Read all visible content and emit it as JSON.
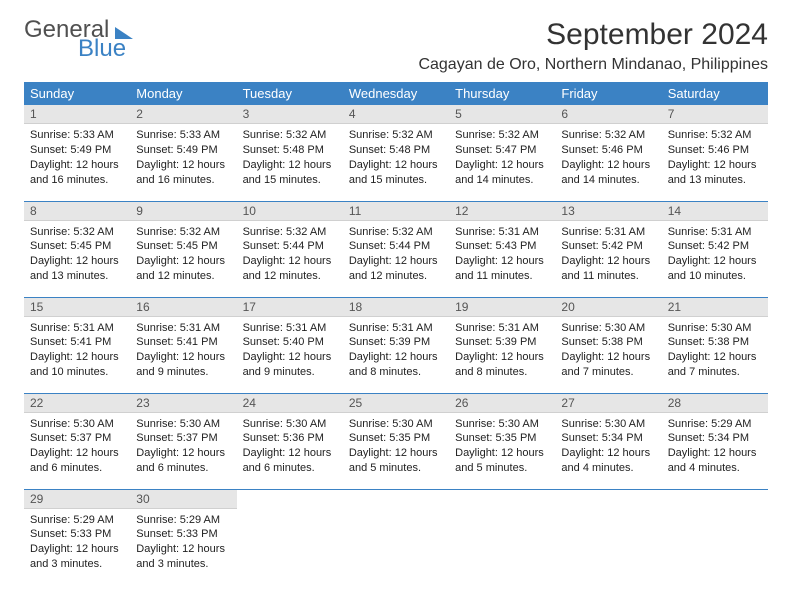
{
  "brand": {
    "text1": "General",
    "text2": "Blue",
    "accent_color": "#3b82c4"
  },
  "title": "September 2024",
  "location": "Cagayan de Oro, Northern Mindanao, Philippines",
  "columns": [
    "Sunday",
    "Monday",
    "Tuesday",
    "Wednesday",
    "Thursday",
    "Friday",
    "Saturday"
  ],
  "style": {
    "header_bg": "#3b82c4",
    "header_fg": "#ffffff",
    "daynum_bg": "#e6e6e6",
    "row_divider": "#3b82c4",
    "body_font_size": 11
  },
  "weeks": [
    [
      {
        "n": "1",
        "sr": "5:33 AM",
        "ss": "5:49 PM",
        "dl": "12 hours and 16 minutes."
      },
      {
        "n": "2",
        "sr": "5:33 AM",
        "ss": "5:49 PM",
        "dl": "12 hours and 16 minutes."
      },
      {
        "n": "3",
        "sr": "5:32 AM",
        "ss": "5:48 PM",
        "dl": "12 hours and 15 minutes."
      },
      {
        "n": "4",
        "sr": "5:32 AM",
        "ss": "5:48 PM",
        "dl": "12 hours and 15 minutes."
      },
      {
        "n": "5",
        "sr": "5:32 AM",
        "ss": "5:47 PM",
        "dl": "12 hours and 14 minutes."
      },
      {
        "n": "6",
        "sr": "5:32 AM",
        "ss": "5:46 PM",
        "dl": "12 hours and 14 minutes."
      },
      {
        "n": "7",
        "sr": "5:32 AM",
        "ss": "5:46 PM",
        "dl": "12 hours and 13 minutes."
      }
    ],
    [
      {
        "n": "8",
        "sr": "5:32 AM",
        "ss": "5:45 PM",
        "dl": "12 hours and 13 minutes."
      },
      {
        "n": "9",
        "sr": "5:32 AM",
        "ss": "5:45 PM",
        "dl": "12 hours and 12 minutes."
      },
      {
        "n": "10",
        "sr": "5:32 AM",
        "ss": "5:44 PM",
        "dl": "12 hours and 12 minutes."
      },
      {
        "n": "11",
        "sr": "5:32 AM",
        "ss": "5:44 PM",
        "dl": "12 hours and 12 minutes."
      },
      {
        "n": "12",
        "sr": "5:31 AM",
        "ss": "5:43 PM",
        "dl": "12 hours and 11 minutes."
      },
      {
        "n": "13",
        "sr": "5:31 AM",
        "ss": "5:42 PM",
        "dl": "12 hours and 11 minutes."
      },
      {
        "n": "14",
        "sr": "5:31 AM",
        "ss": "5:42 PM",
        "dl": "12 hours and 10 minutes."
      }
    ],
    [
      {
        "n": "15",
        "sr": "5:31 AM",
        "ss": "5:41 PM",
        "dl": "12 hours and 10 minutes."
      },
      {
        "n": "16",
        "sr": "5:31 AM",
        "ss": "5:41 PM",
        "dl": "12 hours and 9 minutes."
      },
      {
        "n": "17",
        "sr": "5:31 AM",
        "ss": "5:40 PM",
        "dl": "12 hours and 9 minutes."
      },
      {
        "n": "18",
        "sr": "5:31 AM",
        "ss": "5:39 PM",
        "dl": "12 hours and 8 minutes."
      },
      {
        "n": "19",
        "sr": "5:31 AM",
        "ss": "5:39 PM",
        "dl": "12 hours and 8 minutes."
      },
      {
        "n": "20",
        "sr": "5:30 AM",
        "ss": "5:38 PM",
        "dl": "12 hours and 7 minutes."
      },
      {
        "n": "21",
        "sr": "5:30 AM",
        "ss": "5:38 PM",
        "dl": "12 hours and 7 minutes."
      }
    ],
    [
      {
        "n": "22",
        "sr": "5:30 AM",
        "ss": "5:37 PM",
        "dl": "12 hours and 6 minutes."
      },
      {
        "n": "23",
        "sr": "5:30 AM",
        "ss": "5:37 PM",
        "dl": "12 hours and 6 minutes."
      },
      {
        "n": "24",
        "sr": "5:30 AM",
        "ss": "5:36 PM",
        "dl": "12 hours and 6 minutes."
      },
      {
        "n": "25",
        "sr": "5:30 AM",
        "ss": "5:35 PM",
        "dl": "12 hours and 5 minutes."
      },
      {
        "n": "26",
        "sr": "5:30 AM",
        "ss": "5:35 PM",
        "dl": "12 hours and 5 minutes."
      },
      {
        "n": "27",
        "sr": "5:30 AM",
        "ss": "5:34 PM",
        "dl": "12 hours and 4 minutes."
      },
      {
        "n": "28",
        "sr": "5:29 AM",
        "ss": "5:34 PM",
        "dl": "12 hours and 4 minutes."
      }
    ],
    [
      {
        "n": "29",
        "sr": "5:29 AM",
        "ss": "5:33 PM",
        "dl": "12 hours and 3 minutes."
      },
      {
        "n": "30",
        "sr": "5:29 AM",
        "ss": "5:33 PM",
        "dl": "12 hours and 3 minutes."
      },
      null,
      null,
      null,
      null,
      null
    ]
  ],
  "labels": {
    "sunrise": "Sunrise:",
    "sunset": "Sunset:",
    "daylight": "Daylight:"
  }
}
